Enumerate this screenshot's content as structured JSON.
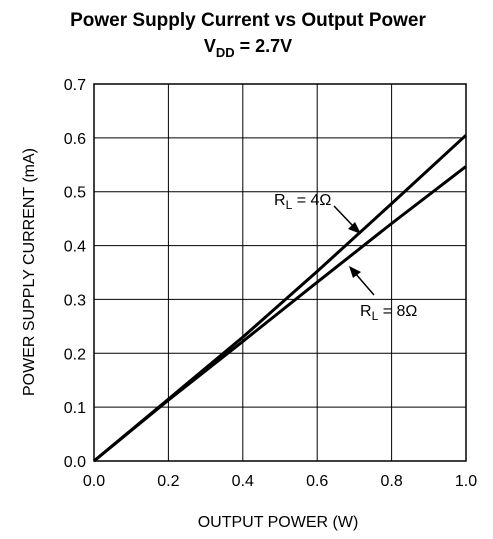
{
  "chart_data": {
    "type": "line",
    "title": "Power Supply Current vs Output Power",
    "subtitle": {
      "prefix": "V",
      "subscript": "DD",
      "suffix": " = 2.7V"
    },
    "xlabel": "OUTPUT POWER (W)",
    "ylabel": "POWER SUPPLY CURRENT (mA)",
    "xlim": [
      0,
      1.0
    ],
    "ylim": [
      0,
      0.7
    ],
    "xticks": [
      "0.0",
      "0.2",
      "0.4",
      "0.6",
      "0.8",
      "1.0"
    ],
    "yticks": [
      "0.0",
      "0.1",
      "0.2",
      "0.3",
      "0.4",
      "0.5",
      "0.6",
      "0.7"
    ],
    "grid": true,
    "series": [
      {
        "name": "RL = 4Ω",
        "x": [
          0.0,
          0.2,
          0.4,
          0.6,
          0.8,
          1.0
        ],
        "y": [
          0.0,
          0.115,
          0.23,
          0.352,
          0.478,
          0.605
        ]
      },
      {
        "name": "RL = 8Ω",
        "x": [
          0.0,
          0.2,
          0.4,
          0.6,
          0.8,
          1.0
        ],
        "y": [
          0.0,
          0.113,
          0.222,
          0.332,
          0.441,
          0.547
        ]
      }
    ],
    "annotations": [
      {
        "prefix": "R",
        "subscript": "L",
        "suffix": " = 4Ω"
      },
      {
        "prefix": "R",
        "subscript": "L",
        "suffix": " = 8Ω"
      }
    ],
    "colors": {
      "line": "#000000",
      "grid": "#000000",
      "background": "#ffffff"
    }
  }
}
